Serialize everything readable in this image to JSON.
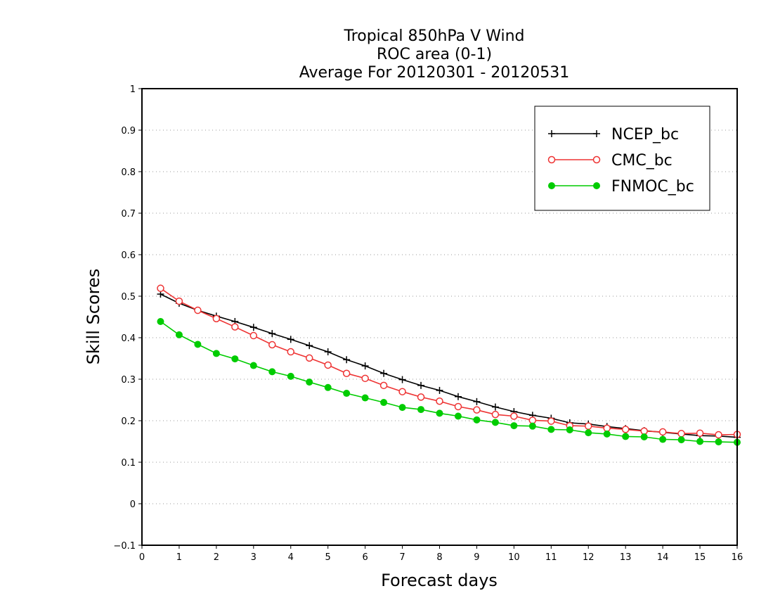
{
  "chart_data": {
    "type": "line",
    "title_lines": [
      "Tropical 850hPa V Wind",
      "ROC area (0-1)",
      "Average For 20120301 - 20120531"
    ],
    "xlabel": "Forecast days",
    "ylabel": "Skill Scores",
    "xlim": [
      0,
      16
    ],
    "ylim": [
      -0.1,
      1
    ],
    "x_ticks": [
      "0",
      "1",
      "2",
      "3",
      "4",
      "5",
      "6",
      "7",
      "8",
      "9",
      "10",
      "11",
      "12",
      "13",
      "14",
      "15",
      "16"
    ],
    "y_ticks": [
      "−0.1",
      "0",
      "0.1",
      "0.2",
      "0.3",
      "0.4",
      "0.5",
      "0.6",
      "0.7",
      "0.8",
      "0.9",
      "1"
    ],
    "grid": "horizontal dotted",
    "legend_position": "top-right",
    "x": [
      0.5,
      1,
      1.5,
      2,
      2.5,
      3,
      3.5,
      4,
      4.5,
      5,
      5.5,
      6,
      6.5,
      7,
      7.5,
      8,
      8.5,
      9,
      9.5,
      10,
      10.5,
      11,
      11.5,
      12,
      12.5,
      13,
      13.5,
      14,
      14.5,
      15,
      15.5,
      16
    ],
    "series": [
      {
        "name": "NCEP_bc",
        "color": "#000000",
        "marker": "plus",
        "values": [
          0.505,
          0.483,
          0.466,
          0.452,
          0.439,
          0.425,
          0.41,
          0.396,
          0.381,
          0.366,
          0.347,
          0.332,
          0.314,
          0.299,
          0.285,
          0.273,
          0.258,
          0.246,
          0.233,
          0.222,
          0.213,
          0.206,
          0.195,
          0.192,
          0.186,
          0.181,
          0.176,
          0.172,
          0.168,
          0.164,
          0.163,
          0.16
        ]
      },
      {
        "name": "CMC_bc",
        "color": "#ee3333",
        "marker": "open-circle",
        "values": [
          0.519,
          0.488,
          0.466,
          0.446,
          0.426,
          0.405,
          0.383,
          0.366,
          0.351,
          0.334,
          0.314,
          0.302,
          0.285,
          0.27,
          0.257,
          0.247,
          0.234,
          0.226,
          0.215,
          0.211,
          0.201,
          0.199,
          0.188,
          0.187,
          0.182,
          0.179,
          0.175,
          0.173,
          0.169,
          0.17,
          0.166,
          0.167
        ]
      },
      {
        "name": "FNMOC_bc",
        "color": "#00cc00",
        "marker": "filled-circle",
        "values": [
          0.439,
          0.407,
          0.384,
          0.362,
          0.349,
          0.333,
          0.318,
          0.307,
          0.293,
          0.28,
          0.266,
          0.255,
          0.244,
          0.232,
          0.227,
          0.218,
          0.211,
          0.202,
          0.196,
          0.188,
          0.187,
          0.179,
          0.178,
          0.171,
          0.168,
          0.162,
          0.161,
          0.155,
          0.154,
          0.15,
          0.149,
          0.148
        ]
      }
    ]
  }
}
